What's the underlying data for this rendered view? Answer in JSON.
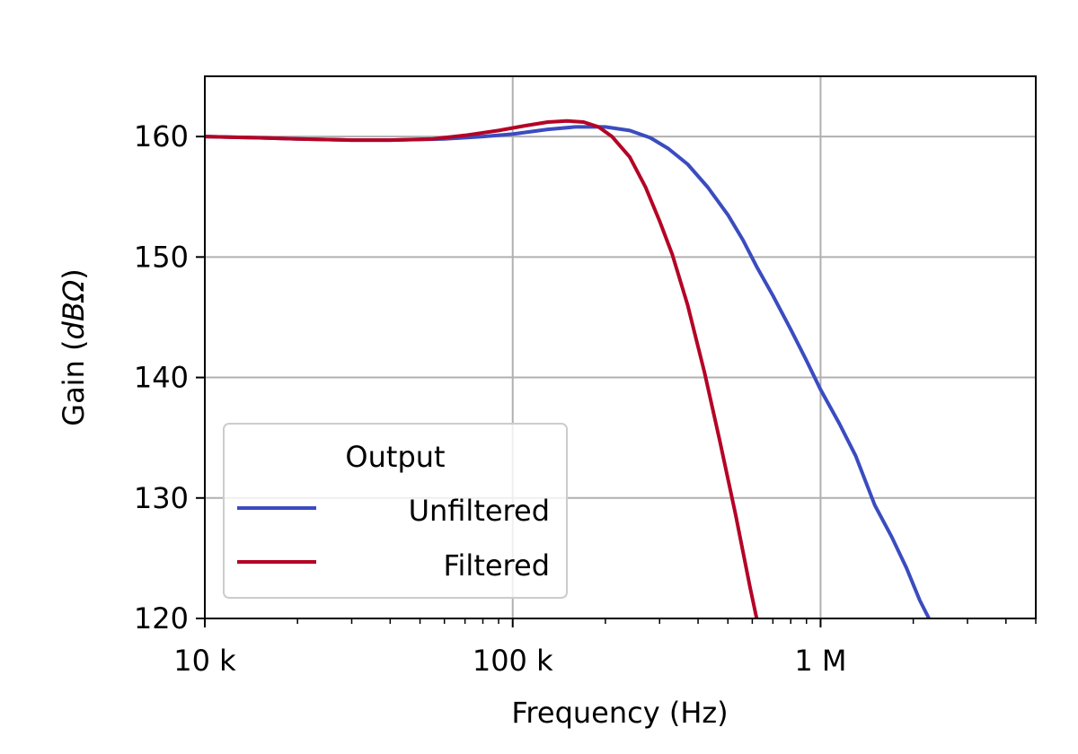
{
  "chart_data": {
    "type": "line",
    "xlabel": "Frequency (Hz)",
    "ylabel_main": "Gain (",
    "ylabel_unit": "dBΩ",
    "ylabel_close": ")",
    "x_scale": "log",
    "xlim": [
      10000,
      5000000
    ],
    "ylim": [
      120,
      165
    ],
    "grid": true,
    "x_ticks": [
      {
        "value": 10000,
        "label": "10 k"
      },
      {
        "value": 100000,
        "label": "100 k"
      },
      {
        "value": 1000000,
        "label": "1 M"
      }
    ],
    "y_ticks": [
      {
        "value": 120,
        "label": "120"
      },
      {
        "value": 130,
        "label": "130"
      },
      {
        "value": 140,
        "label": "140"
      },
      {
        "value": 150,
        "label": "150"
      },
      {
        "value": 160,
        "label": "160"
      }
    ],
    "legend": {
      "title": "Output",
      "location": "lower-left"
    },
    "series": [
      {
        "name": "Unfiltered",
        "color": "#3b4cc0",
        "points": [
          [
            10000,
            160.0
          ],
          [
            15000,
            159.9
          ],
          [
            20000,
            159.8
          ],
          [
            30000,
            159.7
          ],
          [
            40000,
            159.7
          ],
          [
            60000,
            159.8
          ],
          [
            80000,
            160.0
          ],
          [
            100000,
            160.2
          ],
          [
            130000,
            160.6
          ],
          [
            160000,
            160.8
          ],
          [
            200000,
            160.8
          ],
          [
            240000,
            160.5
          ],
          [
            280000,
            159.9
          ],
          [
            320000,
            159.0
          ],
          [
            370000,
            157.7
          ],
          [
            430000,
            155.8
          ],
          [
            500000,
            153.5
          ],
          [
            560000,
            151.4
          ],
          [
            620000,
            149.2
          ],
          [
            700000,
            146.8
          ],
          [
            800000,
            144.0
          ],
          [
            900000,
            141.4
          ],
          [
            1000000,
            139.0
          ],
          [
            1150000,
            136.2
          ],
          [
            1300000,
            133.5
          ],
          [
            1500000,
            129.4
          ],
          [
            1700000,
            126.8
          ],
          [
            1900000,
            124.2
          ],
          [
            2100000,
            121.5
          ],
          [
            2250000,
            120.0
          ]
        ]
      },
      {
        "name": "Filtered",
        "color": "#b40426",
        "points": [
          [
            10000,
            160.0
          ],
          [
            15000,
            159.9
          ],
          [
            20000,
            159.8
          ],
          [
            30000,
            159.7
          ],
          [
            40000,
            159.7
          ],
          [
            55000,
            159.8
          ],
          [
            70000,
            160.1
          ],
          [
            90000,
            160.5
          ],
          [
            110000,
            160.9
          ],
          [
            130000,
            161.2
          ],
          [
            150000,
            161.3
          ],
          [
            170000,
            161.2
          ],
          [
            190000,
            160.8
          ],
          [
            210000,
            160.0
          ],
          [
            240000,
            158.3
          ],
          [
            270000,
            155.8
          ],
          [
            300000,
            153.0
          ],
          [
            330000,
            150.2
          ],
          [
            370000,
            146.0
          ],
          [
            420000,
            140.4
          ],
          [
            470000,
            134.8
          ],
          [
            530000,
            128.6
          ],
          [
            590000,
            122.6
          ],
          [
            620000,
            120.0
          ]
        ]
      }
    ]
  }
}
